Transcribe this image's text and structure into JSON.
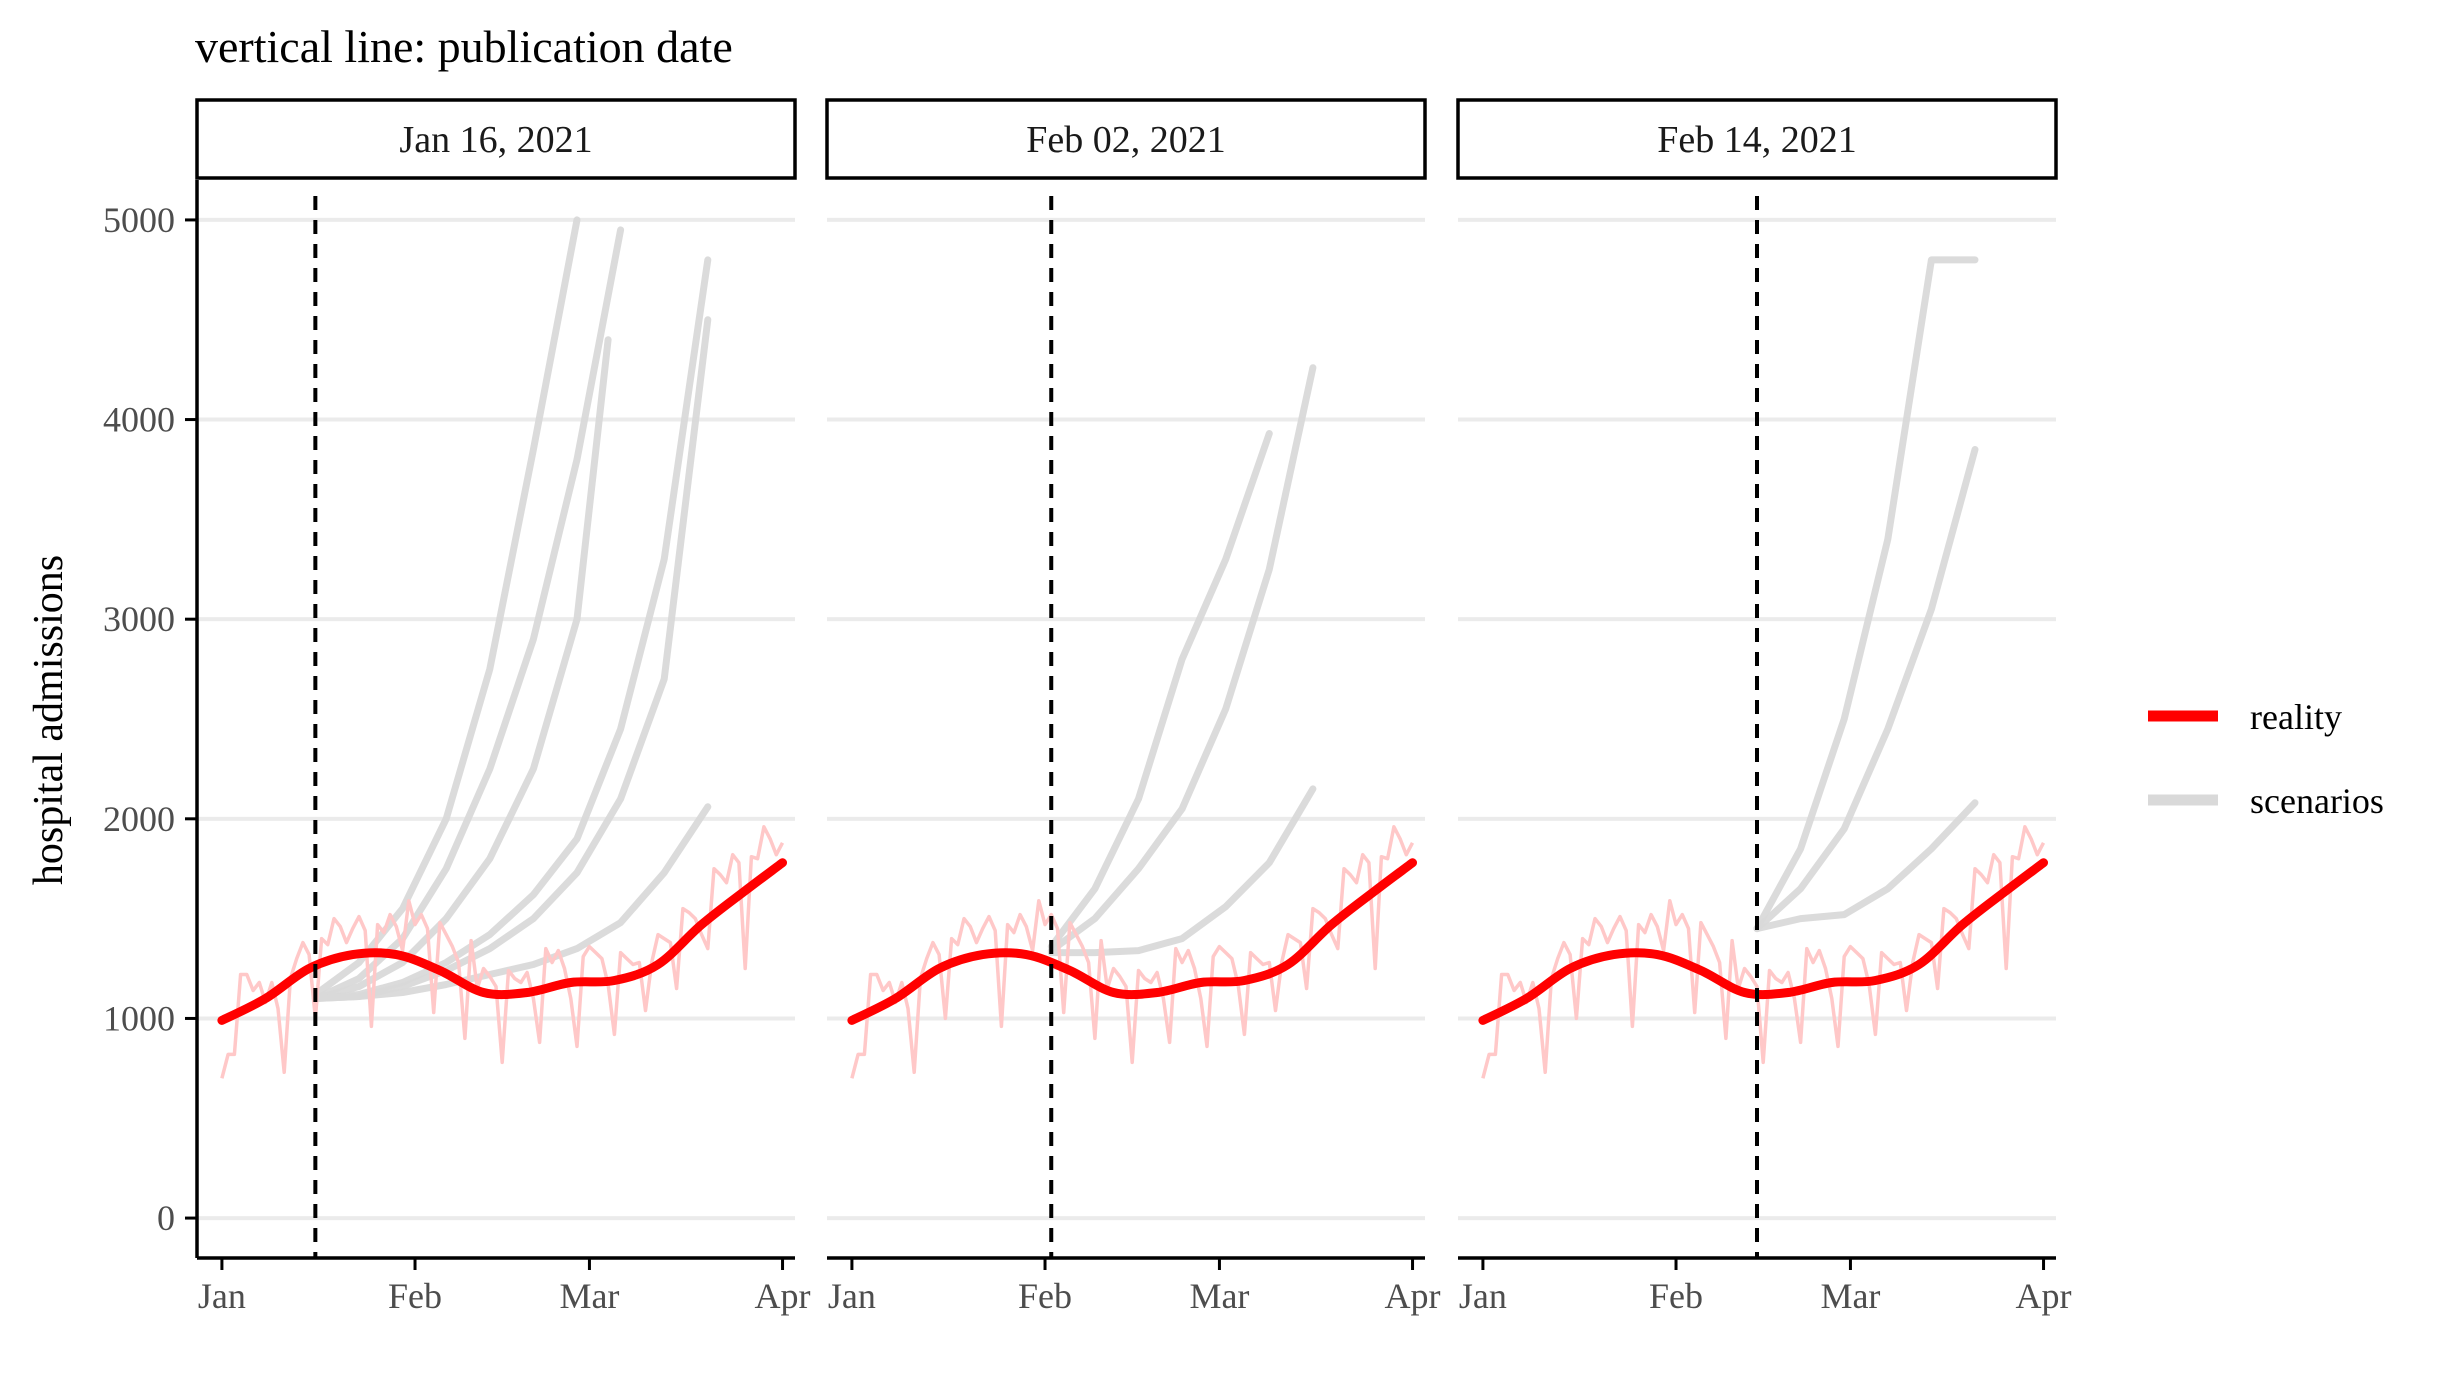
{
  "chart_data": {
    "type": "line",
    "title": "vertical line: publication date",
    "ylabel": "hospital admissions",
    "xlabel": "",
    "x_ticks": [
      "Jan",
      "Feb",
      "Mar",
      "Apr"
    ],
    "x_tick_dates": [
      "2021-01-01",
      "2021-02-01",
      "2021-03-01",
      "2021-04-01"
    ],
    "xlim": [
      "2020-12-28",
      "2021-04-03"
    ],
    "y_ticks": [
      0,
      1000,
      2000,
      3000,
      4000,
      5000
    ],
    "ylim": [
      -200,
      5200
    ],
    "grid": "horizontal major",
    "legend": {
      "position": "right",
      "entries": [
        {
          "label": "reality",
          "color": "#ff0000"
        },
        {
          "label": "scenarios",
          "color": "#d9d9d9"
        }
      ]
    },
    "colors": {
      "reality": "#ff0000",
      "reality_daily": "#ffc8c8",
      "scenarios": "#d9d9d9",
      "grid": "#ebebeb",
      "axis": "#000000"
    },
    "reality_smooth": {
      "dates": [
        "2021-01-01",
        "2021-01-08",
        "2021-01-15",
        "2021-01-22",
        "2021-01-29",
        "2021-02-05",
        "2021-02-12",
        "2021-02-19",
        "2021-02-26",
        "2021-03-05",
        "2021-03-12",
        "2021-03-19",
        "2021-03-26",
        "2021-04-01"
      ],
      "values": [
        990,
        1100,
        1250,
        1320,
        1320,
        1240,
        1130,
        1130,
        1180,
        1190,
        1270,
        1470,
        1640,
        1780
      ]
    },
    "reality_daily": {
      "start": "2021-01-01",
      "values": [
        700,
        820,
        820,
        1220,
        1220,
        1140,
        1180,
        1080,
        1180,
        1050,
        730,
        1200,
        1300,
        1380,
        1320,
        1000,
        1400,
        1370,
        1500,
        1460,
        1380,
        1450,
        1510,
        1440,
        960,
        1470,
        1430,
        1520,
        1460,
        1340,
        1590,
        1470,
        1520,
        1450,
        1030,
        1480,
        1420,
        1360,
        1280,
        900,
        1390,
        1150,
        1250,
        1210,
        1160,
        780,
        1240,
        1200,
        1180,
        1230,
        1100,
        880,
        1350,
        1280,
        1340,
        1250,
        1100,
        860,
        1310,
        1360,
        1330,
        1300,
        1170,
        920,
        1330,
        1300,
        1270,
        1280,
        1040,
        1280,
        1420,
        1400,
        1380,
        1150,
        1550,
        1530,
        1500,
        1420,
        1350,
        1750,
        1720,
        1680,
        1820,
        1780,
        1250,
        1810,
        1800,
        1960,
        1900,
        1820,
        1880
      ]
    },
    "panels": [
      {
        "label": "Jan 16, 2021",
        "publication_date": "2021-01-16",
        "scenarios": [
          {
            "dates": [
              "2021-01-16",
              "2021-01-23",
              "2021-01-30",
              "2021-02-06",
              "2021-02-13",
              "2021-02-20",
              "2021-02-27"
            ],
            "values": [
              1120,
              1280,
              1550,
              2000,
              2750,
              3850,
              5000
            ]
          },
          {
            "dates": [
              "2021-01-16",
              "2021-01-23",
              "2021-01-30",
              "2021-02-06",
              "2021-02-13",
              "2021-02-20",
              "2021-02-27",
              "2021-03-06"
            ],
            "values": [
              1100,
              1200,
              1400,
              1750,
              2250,
              2900,
              3800,
              4950
            ]
          },
          {
            "dates": [
              "2021-01-16",
              "2021-01-23",
              "2021-01-30",
              "2021-02-06",
              "2021-02-13",
              "2021-02-20",
              "2021-02-27",
              "2021-03-04"
            ],
            "values": [
              1100,
              1160,
              1280,
              1500,
              1800,
              2250,
              3000,
              4400
            ]
          },
          {
            "dates": [
              "2021-01-16",
              "2021-01-23",
              "2021-01-30",
              "2021-02-06",
              "2021-02-13",
              "2021-02-20",
              "2021-02-27",
              "2021-03-06",
              "2021-03-13",
              "2021-03-20"
            ],
            "values": [
              1100,
              1120,
              1180,
              1280,
              1420,
              1620,
              1900,
              2450,
              3300,
              4800
            ]
          },
          {
            "dates": [
              "2021-01-16",
              "2021-01-23",
              "2021-01-30",
              "2021-02-06",
              "2021-02-13",
              "2021-02-20",
              "2021-02-27",
              "2021-03-06",
              "2021-03-13",
              "2021-03-20"
            ],
            "values": [
              1100,
              1110,
              1160,
              1240,
              1350,
              1500,
              1730,
              2100,
              2700,
              4500
            ]
          },
          {
            "dates": [
              "2021-01-16",
              "2021-01-23",
              "2021-01-30",
              "2021-02-06",
              "2021-02-13",
              "2021-02-20",
              "2021-02-27",
              "2021-03-06",
              "2021-03-13",
              "2021-03-20"
            ],
            "values": [
              1100,
              1110,
              1130,
              1170,
              1220,
              1270,
              1350,
              1480,
              1730,
              2060
            ]
          }
        ]
      },
      {
        "label": "Feb 02, 2021",
        "publication_date": "2021-02-02",
        "scenarios": [
          {
            "dates": [
              "2021-02-02",
              "2021-02-09",
              "2021-02-16",
              "2021-02-23",
              "2021-03-02",
              "2021-03-09"
            ],
            "values": [
              1360,
              1650,
              2100,
              2800,
              3300,
              3930
            ]
          },
          {
            "dates": [
              "2021-02-02",
              "2021-02-09",
              "2021-02-16",
              "2021-02-23",
              "2021-03-02",
              "2021-03-09",
              "2021-03-16"
            ],
            "values": [
              1340,
              1500,
              1750,
              2050,
              2550,
              3250,
              4260
            ]
          },
          {
            "dates": [
              "2021-02-02",
              "2021-02-09",
              "2021-02-16",
              "2021-02-23",
              "2021-03-02",
              "2021-03-09",
              "2021-03-16"
            ],
            "values": [
              1330,
              1330,
              1340,
              1400,
              1560,
              1780,
              2150
            ]
          }
        ]
      },
      {
        "label": "Feb 14, 2021",
        "publication_date": "2021-02-14",
        "scenarios": [
          {
            "dates": [
              "2021-02-14",
              "2021-02-21",
              "2021-02-28",
              "2021-03-07",
              "2021-03-14",
              "2021-03-21"
            ],
            "values": [
              1450,
              1850,
              2500,
              3400,
              4800,
              4800
            ]
          },
          {
            "dates": [
              "2021-02-14",
              "2021-02-21",
              "2021-02-28",
              "2021-03-07",
              "2021-03-14",
              "2021-03-21"
            ],
            "values": [
              1450,
              1650,
              1950,
              2450,
              3050,
              3850
            ]
          },
          {
            "dates": [
              "2021-02-14",
              "2021-02-21",
              "2021-02-28",
              "2021-03-07",
              "2021-03-14",
              "2021-03-21"
            ],
            "values": [
              1450,
              1500,
              1520,
              1650,
              1850,
              2080
            ]
          }
        ]
      }
    ]
  }
}
